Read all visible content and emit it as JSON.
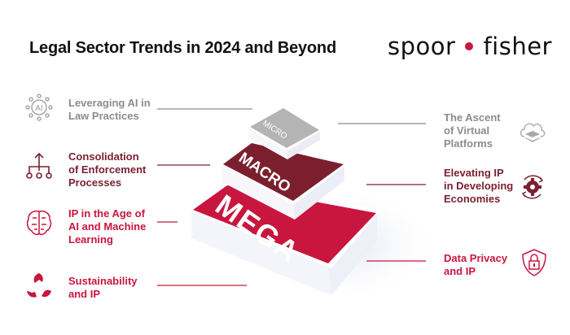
{
  "title": "Legal Sector Trends in 2024 and Beyond",
  "logo": {
    "left": "spoor",
    "right": "fisher"
  },
  "layers": [
    {
      "label": "MICRO",
      "color": "#b4b4b4"
    },
    {
      "label": "MACRO",
      "color": "#7b1f2e"
    },
    {
      "label": "MEGA",
      "color": "#c8163f"
    }
  ],
  "left_items": [
    {
      "text_lines": [
        "Leveraging AI in",
        "Law Practices"
      ],
      "icon": "ai-network-icon",
      "layer": "MICRO"
    },
    {
      "text_lines": [
        "Consolidation",
        "of Enforcement",
        "Processes"
      ],
      "icon": "branch-hierarchy-icon",
      "layer": "MACRO"
    },
    {
      "text_lines": [
        "IP in the Age of",
        "AI and Machine",
        "Learning"
      ],
      "icon": "brain-circuit-icon",
      "layer": "MEGA"
    },
    {
      "text_lines": [
        "Sustainability",
        "and IP"
      ],
      "icon": "recycle-leaves-icon",
      "layer": "MEGA"
    }
  ],
  "right_items": [
    {
      "text_lines": [
        "The Ascent",
        "of Virtual",
        "Platforms"
      ],
      "icon": "cloud-layers-icon",
      "layer": "MICRO"
    },
    {
      "text_lines": [
        "Elevating IP",
        "in Developing",
        "Economies"
      ],
      "icon": "gear-cycle-icon",
      "layer": "MACRO"
    },
    {
      "text_lines": [
        "Data Privacy",
        "and IP"
      ],
      "icon": "shield-lock-icon",
      "layer": "MEGA"
    }
  ],
  "colors": {
    "gray": "#8c8c8c",
    "maroon": "#7a2132",
    "red": "#c8163f"
  }
}
